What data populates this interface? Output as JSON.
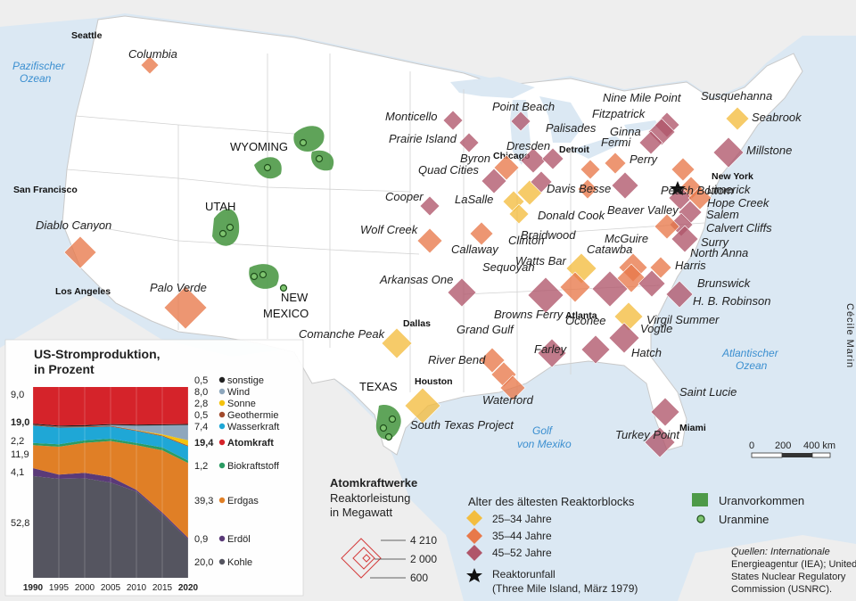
{
  "colors": {
    "sea": "#dbe8f3",
    "land": "#ffffffff",
    "foreign_land": "#eeeeee",
    "young": "#f3bd3f",
    "mid": "#e8794a",
    "old": "#b0566a",
    "uranium": "#4e9a48"
  },
  "waters": {
    "pacific": [
      "Pazifischer",
      "Ozean"
    ],
    "atlantic": [
      "Atlantischer",
      "Ozean"
    ],
    "gulf": [
      "Golf",
      "von Mexiko"
    ]
  },
  "cities": [
    "Seattle",
    "San Francisco",
    "Los Angeles",
    "Dallas",
    "Houston",
    "Chicago",
    "Detroit",
    "New York",
    "Atlanta",
    "Miami"
  ],
  "states": [
    "WYOMING",
    "UTAH",
    "NEW",
    "MEXICO",
    "TEXAS"
  ],
  "credit": "Cécile Marin",
  "scale": {
    "labels": [
      "0",
      "200",
      "400 km"
    ]
  },
  "plants": [
    {
      "name": "Columbia",
      "age": "mid"
    },
    {
      "name": "Diablo Canyon",
      "age": "mid"
    },
    {
      "name": "Palo Verde",
      "age": "mid"
    },
    {
      "name": "Comanche Peak",
      "age": "young"
    },
    {
      "name": "South Texas Project",
      "age": "young"
    },
    {
      "name": "Monticello",
      "age": "old"
    },
    {
      "name": "Prairie Island",
      "age": "old"
    },
    {
      "name": "Point Beach",
      "age": "old"
    },
    {
      "name": "Cooper",
      "age": "old"
    },
    {
      "name": "Wolf Creek",
      "age": "mid"
    },
    {
      "name": "Callaway",
      "age": "mid"
    },
    {
      "name": "Arkansas One",
      "age": "old"
    },
    {
      "name": "Grand Gulf",
      "age": "mid"
    },
    {
      "name": "River Bend",
      "age": "mid"
    },
    {
      "name": "Waterford",
      "age": "mid"
    },
    {
      "name": "Quad Cities",
      "age": "old"
    },
    {
      "name": "Byron",
      "age": "mid"
    },
    {
      "name": "Dresden",
      "age": "old"
    },
    {
      "name": "LaSalle",
      "age": "young"
    },
    {
      "name": "Braidwood",
      "age": "young"
    },
    {
      "name": "Clinton",
      "age": "young"
    },
    {
      "name": "Palisades",
      "age": "old"
    },
    {
      "name": "Donald Cook",
      "age": "old"
    },
    {
      "name": "Fermi",
      "age": "mid"
    },
    {
      "name": "Davis Besse",
      "age": "mid"
    },
    {
      "name": "Perry",
      "age": "mid"
    },
    {
      "name": "Beaver Valley",
      "age": "old"
    },
    {
      "name": "Nine Mile Point",
      "age": "old"
    },
    {
      "name": "Fitzpatrick",
      "age": "old"
    },
    {
      "name": "Ginna",
      "age": "old"
    },
    {
      "name": "Susquehanna",
      "age": "mid"
    },
    {
      "name": "Seabrook",
      "age": "young"
    },
    {
      "name": "Millstone",
      "age": "old"
    },
    {
      "name": "Limerick",
      "age": "mid"
    },
    {
      "name": "Peach Bottom",
      "age": "old"
    },
    {
      "name": "Hope Creek",
      "age": "mid"
    },
    {
      "name": "Salem",
      "age": "old"
    },
    {
      "name": "Calvert Cliffs",
      "age": "old"
    },
    {
      "name": "Surry",
      "age": "old"
    },
    {
      "name": "North Anna",
      "age": "mid"
    },
    {
      "name": "Watts Bar",
      "age": "young"
    },
    {
      "name": "Sequoyah",
      "age": "mid"
    },
    {
      "name": "Browns Ferry",
      "age": "old"
    },
    {
      "name": "McGuire",
      "age": "mid"
    },
    {
      "name": "Catawba",
      "age": "mid"
    },
    {
      "name": "Harris",
      "age": "mid"
    },
    {
      "name": "Brunswick",
      "age": "old"
    },
    {
      "name": "H. B. Robinson",
      "age": "old"
    },
    {
      "name": "Oconee",
      "age": "old"
    },
    {
      "name": "Virgil Summer",
      "age": "young"
    },
    {
      "name": "Vogtle",
      "age": "old"
    },
    {
      "name": "Farley",
      "age": "old"
    },
    {
      "name": "Hatch",
      "age": "old"
    },
    {
      "name": "Saint Lucie",
      "age": "old"
    },
    {
      "name": "Turkey Point",
      "age": "old"
    }
  ],
  "legend_plants": {
    "title": "Atomkraftwerke",
    "subtitle1": "Reaktorleistung",
    "subtitle2": "in Megawatt",
    "sizes": [
      "4 210",
      "2 000",
      "600"
    ]
  },
  "legend_age": {
    "title": "Alter des ältesten Reaktorblocks",
    "items": [
      "25–34 Jahre",
      "35–44 Jahre",
      "45–52 Jahre"
    ],
    "accident1": "Reaktorunfall",
    "accident2": "(Three Mile Island, März 1979)"
  },
  "legend_uranium": {
    "deposit": "Uranvorkommen",
    "mine": "Uranmine"
  },
  "sources": [
    "Quellen: Internationale",
    "Energieagentur (IEA); United",
    "States Nuclear Regulatory",
    "Commission (USNRC)."
  ],
  "chart_data": {
    "type": "area",
    "title1": "US-Stromproduktion,",
    "title2": "in Prozent",
    "x": [
      1990,
      1995,
      2000,
      2005,
      2010,
      2015,
      2020
    ],
    "xlim": [
      1990,
      2020
    ],
    "ylim": [
      0,
      100
    ],
    "series": [
      {
        "name": "Kohle",
        "color": "#555560",
        "values": [
          52.8,
          51.5,
          51.7,
          49.6,
          45.0,
          33.2,
          20.0
        ]
      },
      {
        "name": "Erdöl",
        "color": "#5a3a78",
        "values": [
          4.1,
          2.2,
          2.8,
          2.9,
          0.9,
          0.9,
          0.9
        ]
      },
      {
        "name": "Erdgas",
        "color": "#e07f26",
        "values": [
          11.9,
          14.5,
          15.6,
          18.7,
          23.3,
          32.4,
          39.3
        ]
      },
      {
        "name": "Biokraftstoff",
        "color": "#2b9b63",
        "values": [
          1.2,
          1.3,
          1.3,
          1.2,
          1.2,
          1.5,
          1.2
        ]
      },
      {
        "name": "Wasserkraft",
        "color": "#1fa7d6",
        "values": [
          9.0,
          8.7,
          6.8,
          6.3,
          6.2,
          5.8,
          7.4
        ]
      },
      {
        "name": "Geothermie",
        "color": "#a14a2c",
        "values": [
          0.5,
          0.4,
          0.4,
          0.4,
          0.4,
          0.4,
          0.5
        ]
      },
      {
        "name": "Sonne",
        "color": "#f4c20d",
        "values": [
          0.0,
          0.0,
          0.0,
          0.0,
          0.1,
          0.6,
          2.8
        ]
      },
      {
        "name": "Wind",
        "color": "#8ea7bd",
        "values": [
          0.0,
          0.1,
          0.1,
          0.4,
          2.3,
          4.7,
          8.0
        ]
      },
      {
        "name": "sonstige",
        "color": "#222222",
        "values": [
          0.5,
          0.5,
          0.6,
          0.5,
          0.6,
          0.5,
          0.5
        ]
      },
      {
        "name": "Atomkraft",
        "color": "#d5232a",
        "values": [
          19.0,
          20.1,
          19.8,
          19.3,
          19.6,
          19.5,
          19.4
        ]
      }
    ],
    "left_labels": [
      "9,0",
      "19,0",
      "2,2",
      "11,9",
      "4,1",
      "52,8"
    ],
    "right_labels": [
      {
        "value": "0,5",
        "name": "sonstige",
        "color": "#222222"
      },
      {
        "value": "8,0",
        "name": "Wind",
        "color": "#8ea7bd"
      },
      {
        "value": "2,8",
        "name": "Sonne",
        "color": "#f4c20d"
      },
      {
        "value": "0,5",
        "name": "Geothermie",
        "color": "#a14a2c"
      },
      {
        "value": "7,4",
        "name": "Wasserkraft",
        "color": "#1fa7d6"
      },
      {
        "value": "19,4",
        "name": "Atomkraft",
        "color": "#d5232a"
      },
      {
        "value": "1,2",
        "name": "Biokraftstoff",
        "color": "#2b9b63"
      },
      {
        "value": "39,3",
        "name": "Erdgas",
        "color": "#e07f26"
      },
      {
        "value": "0,9",
        "name": "Erdöl",
        "color": "#5a3a78"
      },
      {
        "value": "20,0",
        "name": "Kohle",
        "color": "#555560"
      }
    ],
    "x_tick_labels": [
      "1990",
      "1995",
      "2000",
      "2005",
      "2010",
      "2015",
      "2020"
    ]
  }
}
